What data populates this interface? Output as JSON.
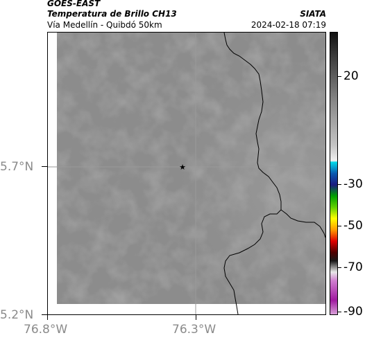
{
  "header": {
    "satellite": "GOES-EAST",
    "product": "Temperatura de Brillo CH13",
    "agency": "SIATA",
    "route": "Vía Medellín - Quibdó 50km",
    "datetime": "2024-02-18 07:19"
  },
  "axes": {
    "y_ticks": [
      "5.7°N",
      "5.2°N"
    ],
    "x_ticks": [
      "76.8°W",
      "76.3°W"
    ]
  },
  "colorbar": {
    "ticks": [
      "20",
      "-30",
      "-50",
      "-70",
      "-90"
    ]
  },
  "marker": {
    "symbol": "★"
  },
  "colors": {
    "land_gray": "#8c8c8c",
    "coast_line": "#000000"
  }
}
